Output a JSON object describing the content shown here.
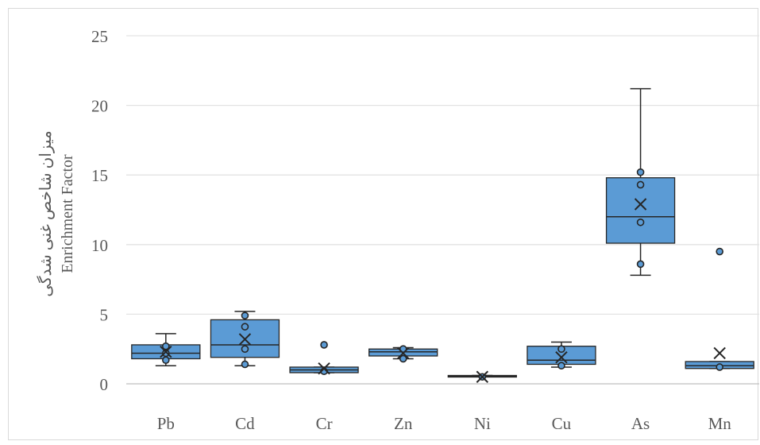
{
  "chart_data": {
    "type": "boxplot",
    "title": "",
    "xlabel": "",
    "ylabel_lines": [
      "میزان شاخص غنی شدگی",
      "Enrichment Factor"
    ],
    "ylim": [
      0,
      25
    ],
    "yticks": [
      0,
      5,
      10,
      15,
      20,
      25
    ],
    "grid": true,
    "box_color": "#5b9bd5",
    "edge_color": "#262626",
    "categories": [
      "Pb",
      "Cd",
      "Cr",
      "Zn",
      "Ni",
      "Cu",
      "As",
      "Mn"
    ],
    "boxes": [
      {
        "label": "Pb",
        "whisker_low": 1.3,
        "q1": 1.8,
        "median": 2.2,
        "q3": 2.8,
        "whisker_high": 3.6,
        "mean": 2.3,
        "points": [
          1.7,
          2.2,
          2.7
        ]
      },
      {
        "label": "Cd",
        "whisker_low": 1.3,
        "q1": 1.9,
        "median": 2.8,
        "q3": 4.6,
        "whisker_high": 5.2,
        "mean": 3.2,
        "points": [
          1.4,
          2.5,
          4.1,
          4.9
        ]
      },
      {
        "label": "Cr",
        "whisker_low": 0.8,
        "q1": 0.8,
        "median": 1.0,
        "q3": 1.2,
        "whisker_high": 1.2,
        "mean": 1.1,
        "points": [
          0.9,
          2.8
        ]
      },
      {
        "label": "Zn",
        "whisker_low": 1.8,
        "q1": 2.0,
        "median": 2.3,
        "q3": 2.5,
        "whisker_high": 2.6,
        "mean": 2.2,
        "points": [
          1.8,
          2.5
        ]
      },
      {
        "label": "Ni",
        "whisker_low": 0.5,
        "q1": 0.5,
        "median": 0.55,
        "q3": 0.6,
        "whisker_high": 0.6,
        "mean": 0.5,
        "points": [
          0.5
        ]
      },
      {
        "label": "Cu",
        "whisker_low": 1.2,
        "q1": 1.4,
        "median": 1.7,
        "q3": 2.7,
        "whisker_high": 3.0,
        "mean": 1.9,
        "points": [
          1.3,
          2.5
        ]
      },
      {
        "label": "As",
        "whisker_low": 7.8,
        "q1": 10.1,
        "median": 12.0,
        "q3": 14.8,
        "whisker_high": 21.2,
        "mean": 12.9,
        "points": [
          8.6,
          11.6,
          14.3,
          15.2
        ]
      },
      {
        "label": "Mn",
        "whisker_low": 1.1,
        "q1": 1.1,
        "median": 1.3,
        "q3": 1.6,
        "whisker_high": 1.6,
        "mean": 2.2,
        "points": [
          1.2,
          9.5
        ]
      }
    ]
  }
}
